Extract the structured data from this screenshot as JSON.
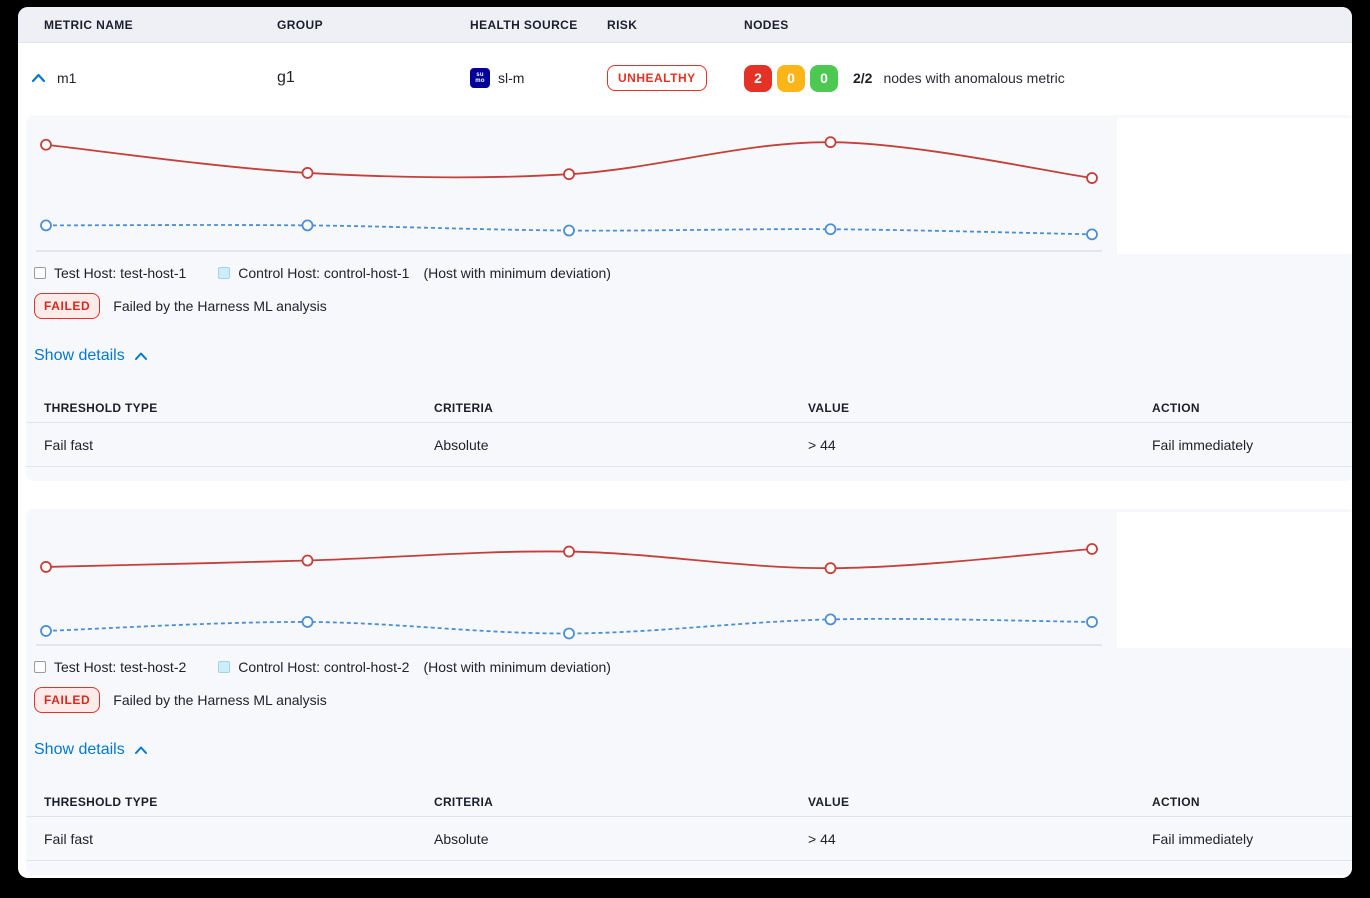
{
  "colors": {
    "risk_red": "#e43326",
    "warning_yellow": "#fcb519",
    "healthy_green": "#4dc952",
    "primary_blue": "#0278d5",
    "test_line_red": "#c5403a",
    "control_line_blue": "#4a8fd6",
    "panel_bg": "#f7f8fb",
    "sumo_logo_blue": "#000099"
  },
  "header": {
    "columns": [
      "METRIC NAME",
      "GROUP",
      "HEALTH SOURCE",
      "RISK",
      "NODES"
    ]
  },
  "metric_row": {
    "expand_icon": "chevron-up-icon",
    "name": "m1",
    "group": "g1",
    "health_source": "sl-m",
    "health_source_icon": {
      "name": "sumo-logic-icon",
      "line1": "su",
      "line2": "mo"
    },
    "risk": "UNHEALTHY",
    "nodes": {
      "anomalous_count": "2",
      "warning_count": "0",
      "healthy_count": "0",
      "ratio": "2/2",
      "label": "nodes with anomalous metric"
    }
  },
  "sections": [
    {
      "legend": {
        "test_label": "Test Host: test-host-1",
        "control_label": "Control Host: control-host-1",
        "note": "(Host with minimum deviation)"
      },
      "status_badge": "FAILED",
      "status_text": "Failed by the Harness ML analysis",
      "show_details": "Show details",
      "table": {
        "headers": [
          "THRESHOLD TYPE",
          "CRITERIA",
          "VALUE",
          "ACTION"
        ],
        "rows": [
          [
            "Fail fast",
            "Absolute",
            "> 44",
            "Fail immediately"
          ]
        ]
      }
    },
    {
      "legend": {
        "test_label": "Test Host: test-host-2",
        "control_label": "Control Host: control-host-2",
        "note": "(Host with minimum deviation)"
      },
      "status_badge": "FAILED",
      "status_text": "Failed by the Harness ML analysis",
      "show_details": "Show details",
      "table": {
        "headers": [
          "THRESHOLD TYPE",
          "CRITERIA",
          "VALUE",
          "ACTION"
        ],
        "rows": [
          [
            "Fail fast",
            "Absolute",
            "> 44",
            "Fail immediately"
          ]
        ]
      }
    }
  ],
  "chart_data": [
    {
      "type": "line",
      "x": [
        1,
        2,
        3,
        4,
        5
      ],
      "series": [
        {
          "name": "Test Host: test-host-1",
          "color": "#c5403a",
          "style": "solid",
          "marker": "open-circle",
          "values": [
            83,
            61,
            60,
            85,
            57
          ]
        },
        {
          "name": "Control Host: control-host-1",
          "color": "#4a8fd6",
          "style": "dashed",
          "marker": "open-circle",
          "values": [
            20,
            20,
            16,
            17,
            13
          ]
        }
      ],
      "ylim": [
        0,
        100
      ],
      "units": "estimated % of plot height (axes unlabeled in UI)",
      "grid": false,
      "legend_position": "below",
      "baseline_axis": true
    },
    {
      "type": "line",
      "x": [
        1,
        2,
        3,
        4,
        5
      ],
      "series": [
        {
          "name": "Test Host: test-host-2",
          "color": "#c5403a",
          "style": "solid",
          "marker": "open-circle",
          "values": [
            61,
            66,
            73,
            60,
            75
          ]
        },
        {
          "name": "Control Host: control-host-2",
          "color": "#4a8fd6",
          "style": "dashed",
          "marker": "open-circle",
          "values": [
            11,
            18,
            9,
            20,
            18
          ]
        }
      ],
      "ylim": [
        0,
        100
      ],
      "units": "estimated % of plot height (axes unlabeled in UI)",
      "grid": false,
      "legend_position": "below",
      "baseline_axis": true
    }
  ]
}
